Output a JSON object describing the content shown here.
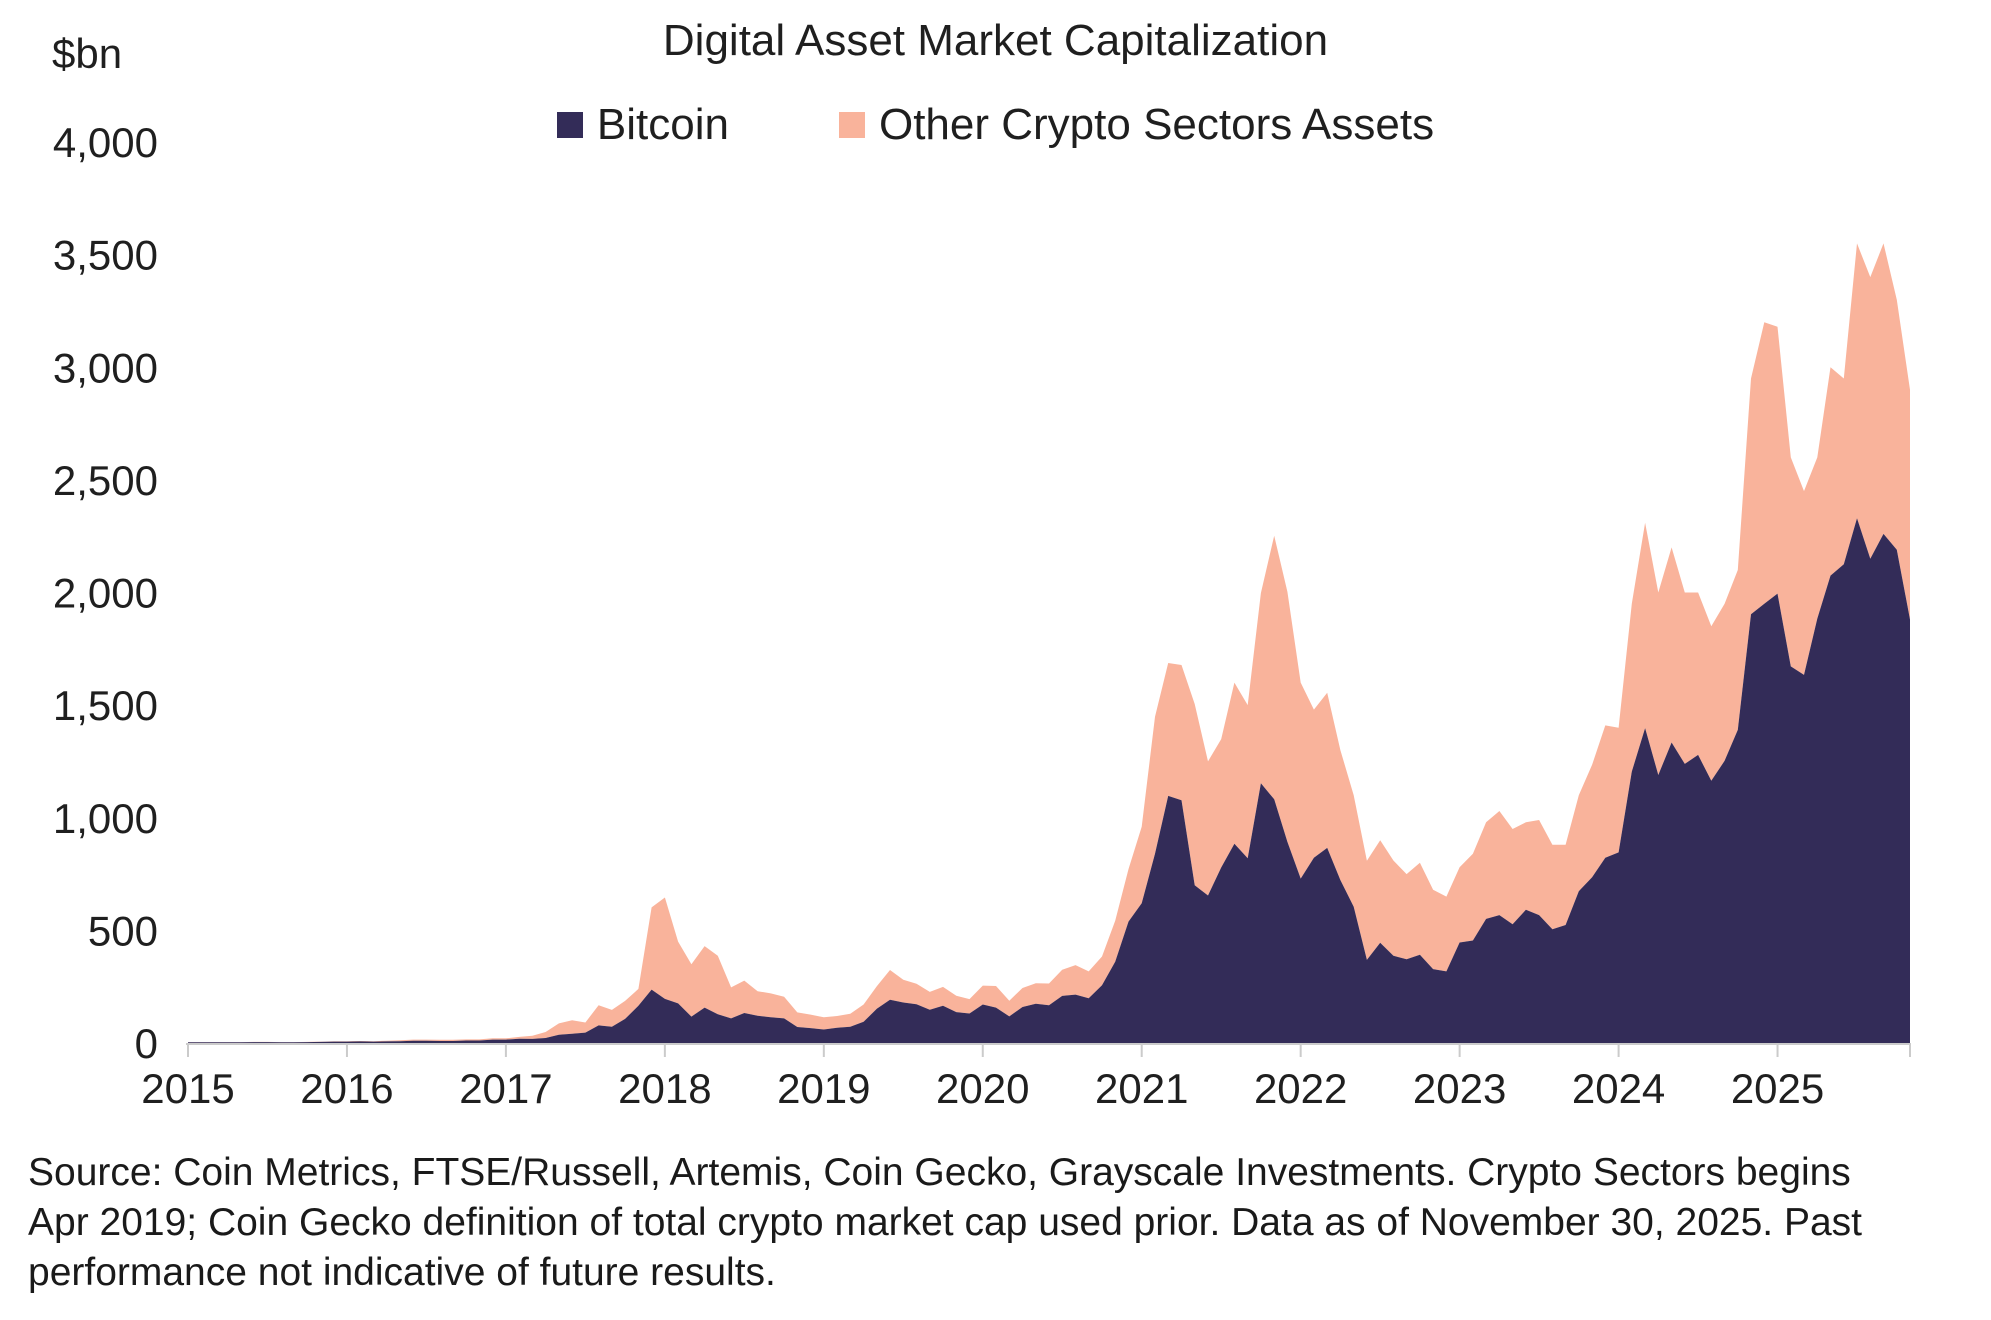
{
  "header": {
    "unit_label": "$bn",
    "title": "Digital Asset Market Capitalization"
  },
  "footer": {
    "lines": [
      "Source: Coin Metrics, FTSE/Russell, Artemis, Coin Gecko, Grayscale Investments. Crypto Sectors begins",
      "Apr 2019; Coin Gecko definition of total crypto market cap used prior. Data as of November 30, 2025. Past",
      "performance not indicative of future results."
    ]
  },
  "chart_data": {
    "type": "area",
    "stacked": true,
    "title": "Digital Asset Market Capitalization",
    "ylabel": "$bn",
    "xlabel": "",
    "ylim": [
      0,
      4000
    ],
    "grid": false,
    "legend_position": "top",
    "axis_color": "#cbcbcb",
    "x_start": "2015-01",
    "x_end": "2025-11",
    "x_frequency": "monthly",
    "x_tick_labels": [
      "2015",
      "2016",
      "2017",
      "2018",
      "2019",
      "2020",
      "2021",
      "2022",
      "2023",
      "2024",
      "2025"
    ],
    "y_ticks": [
      0,
      500,
      1000,
      1500,
      2000,
      2500,
      3000,
      3500,
      4000
    ],
    "y_tick_labels": [
      "0",
      "500",
      "1,000",
      "1,500",
      "2,000",
      "2,500",
      "3,000",
      "3,500",
      "4,000"
    ],
    "series": [
      {
        "name": "Bitcoin",
        "color": "#332C58",
        "values": [
          3,
          3,
          3,
          3,
          3,
          4,
          4,
          3,
          3,
          4,
          5,
          6,
          6,
          7,
          6,
          7,
          8,
          10,
          10,
          9,
          9,
          11,
          11,
          15,
          15,
          19,
          18,
          22,
          37,
          41,
          46,
          78,
          72,
          107,
          165,
          237,
          196,
          176,
          117,
          157,
          128,
          109,
          133,
          121,
          114,
          109,
          71,
          66,
          60,
          68,
          72,
          94,
          152,
          192,
          180,
          172,
          148,
          165,
          137,
          131,
          171,
          157,
          118,
          160,
          174,
          168,
          209,
          215,
          199,
          256,
          361,
          539,
          620,
          840,
          1097,
          1078,
          700,
          655,
          779,
          885,
          820,
          1153,
          1082,
          893,
          730,
          822,
          866,
          723,
          605,
          369,
          445,
          387,
          372,
          392,
          328,
          318,
          446,
          455,
          551,
          568,
          527,
          592,
          568,
          505,
          524,
          674,
          736,
          822,
          846,
          1205,
          1398,
          1190,
          1334,
          1239,
          1279,
          1164,
          1253,
          1390,
          1903,
          1950,
          1995,
          1672,
          1634,
          1884,
          2075,
          2125,
          2330,
          2150,
          2260,
          2190,
          1880
        ]
      },
      {
        "name": "Other Crypto Sectors Assets",
        "color": "#F9B39B",
        "values": [
          1,
          1,
          1,
          1,
          1,
          1,
          1,
          1,
          1,
          1,
          1,
          2,
          2,
          2,
          2,
          3,
          4,
          5,
          5,
          5,
          5,
          5,
          5,
          6,
          6,
          8,
          14,
          27,
          50,
          60,
          45,
          90,
          75,
          80,
          75,
          365,
          450,
          274,
          233,
          273,
          259,
          138,
          144,
          109,
          106,
          96,
          65,
          60,
          54,
          52,
          58,
          77,
          100,
          132,
          101,
          91,
          79,
          84,
          73,
          64,
          84,
          96,
          70,
          84,
          91,
          96,
          116,
          131,
          119,
          128,
          182,
          233,
          340,
          608,
          590,
          600,
          805,
          595,
          570,
          715,
          680,
          845,
          1170,
          1110,
          870,
          658,
          689,
          577,
          495,
          440,
          455,
          423,
          378,
          408,
          352,
          332,
          334,
          385,
          429,
          462,
          423,
          388,
          422,
          375,
          356,
          426,
          499,
          588,
          554,
          745,
          912,
          810,
          866,
          761,
          721,
          686,
          697,
          710,
          1047,
          1250,
          1185,
          928,
          816,
          716,
          925,
          825,
          1220,
          1250,
          1290,
          1110,
          1020
        ]
      }
    ]
  }
}
